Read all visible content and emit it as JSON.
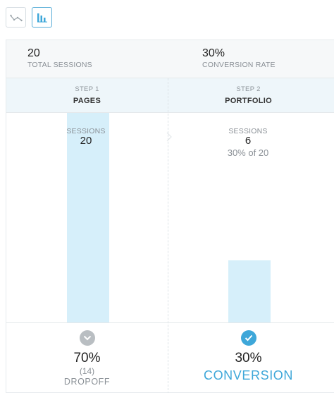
{
  "toolbar": {
    "buttons": [
      {
        "icon": "line-chart-icon",
        "active": false
      },
      {
        "icon": "bar-chart-icon",
        "active": true
      }
    ]
  },
  "summary": {
    "total_sessions": {
      "value": "20",
      "label": "TOTAL SESSIONS"
    },
    "conversion_rate": {
      "value": "30%",
      "label": "CONVERSION RATE"
    }
  },
  "steps": [
    {
      "step_label": "STEP 1",
      "name": "PAGES",
      "sessions_label": "SESSIONS",
      "sessions": "20",
      "sessions_value": 20,
      "bottom": {
        "percent": "70%",
        "count": "(14)",
        "word": "DROPOFF",
        "icon": "chevron-down-icon"
      }
    },
    {
      "step_label": "STEP 2",
      "name": "PORTFOLIO",
      "sessions_label": "SESSIONS",
      "sessions": "6",
      "sessions_value": 6,
      "percent_of": "30% of 20",
      "bottom": {
        "percent": "30%",
        "word": "CONVERSION",
        "icon": "check-icon"
      }
    }
  ],
  "chart_data": {
    "type": "bar",
    "categories": [
      "PAGES",
      "PORTFOLIO"
    ],
    "values": [
      20,
      6
    ],
    "ylim": [
      0,
      20
    ]
  },
  "colors": {
    "bar": "#d6effa",
    "accent": "#3ea7d9",
    "summary_bg": "#f6f8f9",
    "steps_bg": "#eef6fa"
  }
}
